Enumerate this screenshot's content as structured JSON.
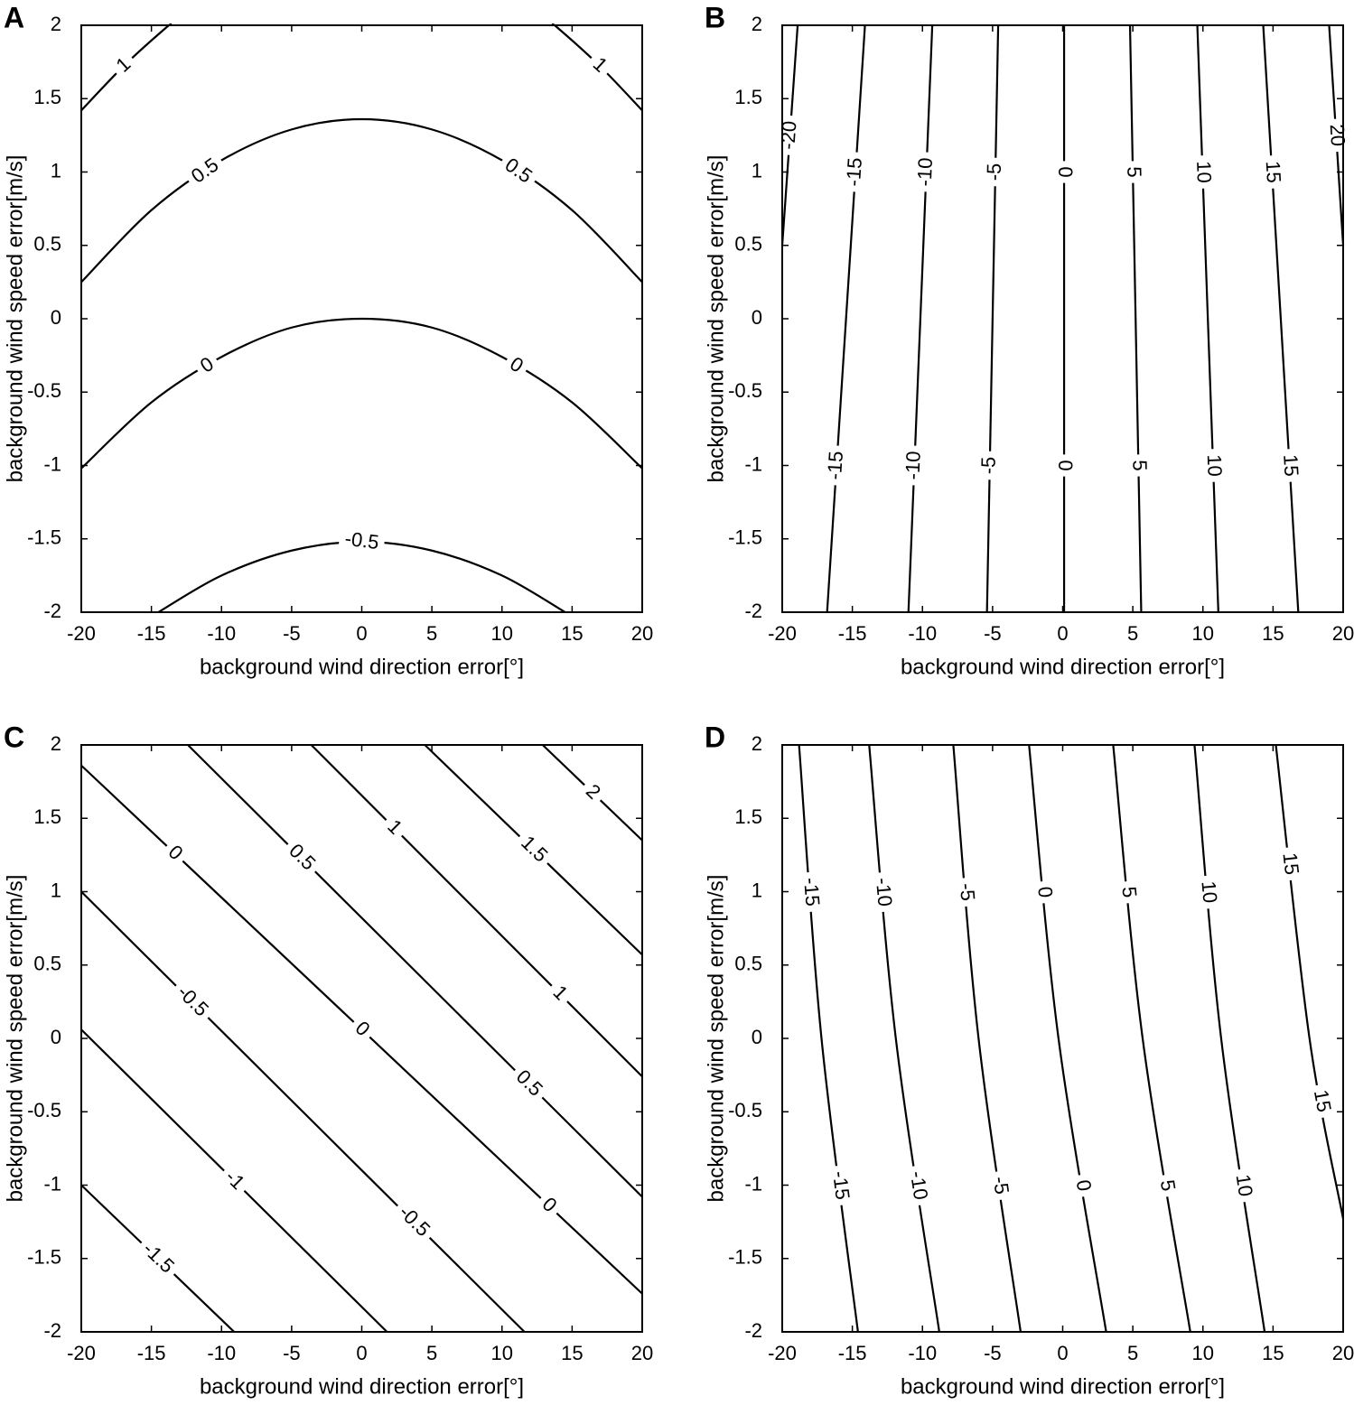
{
  "chart_data": [
    {
      "type": "contour",
      "panel_label": "A",
      "xlabel": "background wind direction error[°]",
      "ylabel": "background wind speed error[m/s]",
      "xlim": [
        -20,
        20
      ],
      "ylim": [
        -2,
        2
      ],
      "xticks": [
        -20,
        -15,
        -10,
        -5,
        0,
        5,
        10,
        15,
        20
      ],
      "yticks": [
        -2,
        -1.5,
        -1,
        -0.5,
        0,
        0.5,
        1,
        1.5,
        2
      ],
      "color": "#000000",
      "series": [
        {
          "level": 1,
          "x": [
            -20,
            -17,
            -14,
            -13.6,
            0,
            13.6,
            14,
            17,
            20
          ],
          "y": [
            1.42,
            1.72,
            1.98,
            2,
            null,
            2,
            1.98,
            1.72,
            1.42
          ]
        },
        {
          "level": 0.5,
          "x": [
            -20,
            -15,
            -10,
            -5,
            0,
            5,
            10,
            15,
            20
          ],
          "y": [
            0.25,
            0.74,
            1.08,
            1.29,
            1.36,
            1.29,
            1.08,
            0.74,
            0.25
          ]
        },
        {
          "level": 0,
          "x": [
            -20,
            -15,
            -10,
            -5,
            0,
            5,
            10,
            15,
            20
          ],
          "y": [
            -1.02,
            -0.57,
            -0.26,
            -0.06,
            0,
            -0.06,
            -0.26,
            -0.57,
            -1.02
          ]
        },
        {
          "level": -0.5,
          "x": [
            -14.5,
            -10,
            -5,
            0,
            5,
            10,
            14.5
          ],
          "y": [
            -2,
            -1.75,
            -1.58,
            -1.52,
            -1.58,
            -1.75,
            -2
          ]
        }
      ]
    },
    {
      "type": "contour",
      "panel_label": "B",
      "xlabel": "background wind direction error[°]",
      "ylabel": "background wind speed error[m/s]",
      "xlim": [
        -20,
        20
      ],
      "ylim": [
        -2,
        2
      ],
      "xticks": [
        -20,
        -15,
        -10,
        -5,
        0,
        5,
        10,
        15,
        20
      ],
      "yticks": [
        -2,
        -1.5,
        -1,
        -0.5,
        0,
        0.5,
        1,
        1.5,
        2
      ],
      "color": "#000000",
      "series": [
        {
          "level": -20,
          "x": [
            -18.9,
            -20
          ],
          "y": [
            2,
            0.5
          ]
        },
        {
          "level": -15,
          "x": [
            -14.1,
            -16.8
          ],
          "y": [
            2,
            -2
          ]
        },
        {
          "level": -10,
          "x": [
            -9.3,
            -11
          ],
          "y": [
            2,
            -2
          ]
        },
        {
          "level": -5,
          "x": [
            -4.6,
            -5.4
          ],
          "y": [
            2,
            -2
          ]
        },
        {
          "level": 0,
          "x": [
            0.1,
            0.1
          ],
          "y": [
            2,
            -2
          ]
        },
        {
          "level": 5,
          "x": [
            4.8,
            5.6
          ],
          "y": [
            2,
            -2
          ]
        },
        {
          "level": 10,
          "x": [
            9.6,
            11.1
          ],
          "y": [
            2,
            -2
          ]
        },
        {
          "level": 15,
          "x": [
            14.3,
            16.8
          ],
          "y": [
            2,
            -2
          ]
        },
        {
          "level": 20,
          "x": [
            19,
            20
          ],
          "y": [
            2,
            0.5
          ]
        }
      ]
    },
    {
      "type": "contour",
      "panel_label": "C",
      "xlabel": "background wind direction error[°]",
      "ylabel": "background wind speed error[m/s]",
      "xlim": [
        -20,
        20
      ],
      "ylim": [
        -2,
        2
      ],
      "xticks": [
        -20,
        -15,
        -10,
        -5,
        0,
        5,
        10,
        15,
        20
      ],
      "yticks": [
        -2,
        -1.5,
        -1,
        -0.5,
        0,
        0.5,
        1,
        1.5,
        2
      ],
      "color": "#000000",
      "series": [
        {
          "level": -1.5,
          "x": [
            -20,
            -9.1
          ],
          "y": [
            -1,
            -2
          ]
        },
        {
          "level": -1,
          "x": [
            -20,
            1.8
          ],
          "y": [
            0.06,
            -2
          ]
        },
        {
          "level": -0.5,
          "x": [
            -20,
            11.6
          ],
          "y": [
            1,
            -2
          ]
        },
        {
          "level": 0,
          "x": [
            -20,
            20
          ],
          "y": [
            1.86,
            -1.74
          ]
        },
        {
          "level": 0.5,
          "x": [
            -12.4,
            20
          ],
          "y": [
            2,
            -1.08
          ]
        },
        {
          "level": 1,
          "x": [
            -3.6,
            20
          ],
          "y": [
            2,
            -0.26
          ]
        },
        {
          "level": 1.5,
          "x": [
            4.5,
            20
          ],
          "y": [
            2,
            0.57
          ]
        },
        {
          "level": 2,
          "x": [
            12.9,
            20
          ],
          "y": [
            2,
            1.35
          ]
        }
      ]
    },
    {
      "type": "contour",
      "panel_label": "D",
      "xlabel": "background wind direction error[°]",
      "ylabel": "background wind speed error[m/s]",
      "xlim": [
        -20,
        20
      ],
      "ylim": [
        -2,
        2
      ],
      "xticks": [
        -20,
        -15,
        -10,
        -5,
        0,
        5,
        10,
        15,
        20
      ],
      "yticks": [
        -2,
        -1.5,
        -1,
        -0.5,
        0,
        0.5,
        1,
        1.5,
        2
      ],
      "color": "#000000",
      "series": [
        {
          "level": -15,
          "x": [
            -18.8,
            -17.2,
            -14.6
          ],
          "y": [
            2,
            0,
            -2
          ]
        },
        {
          "level": -10,
          "x": [
            -13.8,
            -11.9,
            -8.8
          ],
          "y": [
            2,
            0,
            -2
          ]
        },
        {
          "level": -5,
          "x": [
            -7.8,
            -6,
            -3
          ],
          "y": [
            2,
            0,
            -2
          ]
        },
        {
          "level": 0,
          "x": [
            -2.4,
            -0.3,
            3.1
          ],
          "y": [
            2,
            0,
            -2
          ]
        },
        {
          "level": 5,
          "x": [
            3.6,
            5.7,
            9.1
          ],
          "y": [
            2,
            0,
            -2
          ]
        },
        {
          "level": 10,
          "x": [
            9.4,
            11.3,
            14.4
          ],
          "y": [
            2,
            0,
            -2
          ]
        },
        {
          "level": 15,
          "x": [
            15.2,
            17.6,
            20
          ],
          "y": [
            2,
            0,
            -1.23
          ]
        }
      ]
    }
  ]
}
